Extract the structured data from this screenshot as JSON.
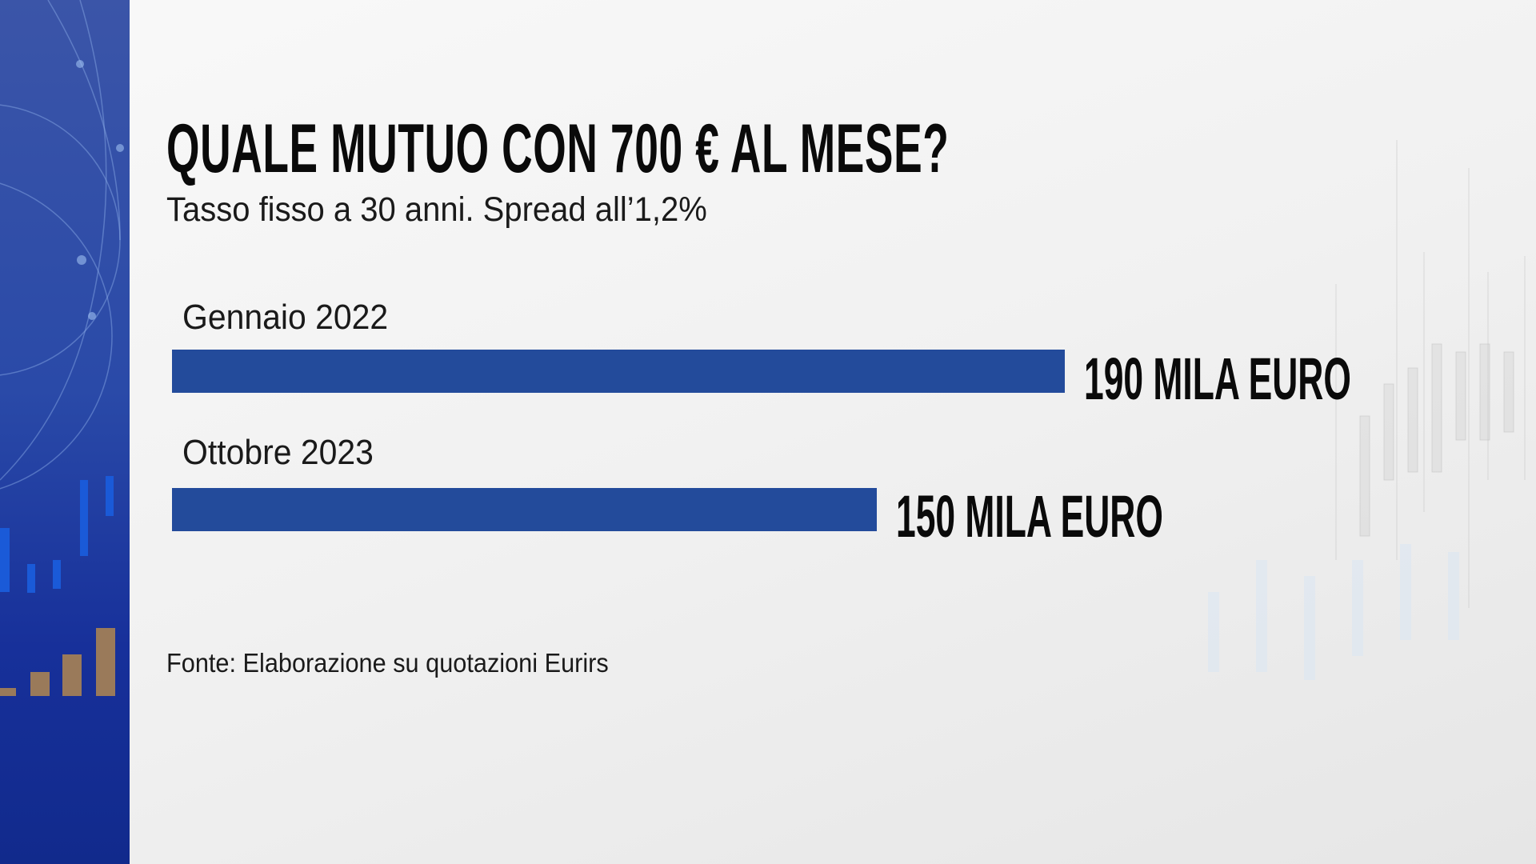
{
  "colors": {
    "bar": "#234b9b",
    "side_panel": "#2a4aa8",
    "text": "#0a0a0a"
  },
  "chart_data": {
    "type": "bar",
    "orientation": "horizontal",
    "title": "QUALE MUTUO CON 700 € AL MESE?",
    "subtitle": "Tasso fisso a 30 anni. Spread all’1,2%",
    "categories": [
      "Gennaio 2022",
      "Ottobre 2023"
    ],
    "values": [
      190,
      150
    ],
    "data_labels": [
      "190 MILA EURO",
      "150 MILA EURO"
    ],
    "xlim": [
      0,
      190
    ],
    "grid": false,
    "source": "Fonte:  Elaborazione su quotazioni Eurirs"
  }
}
